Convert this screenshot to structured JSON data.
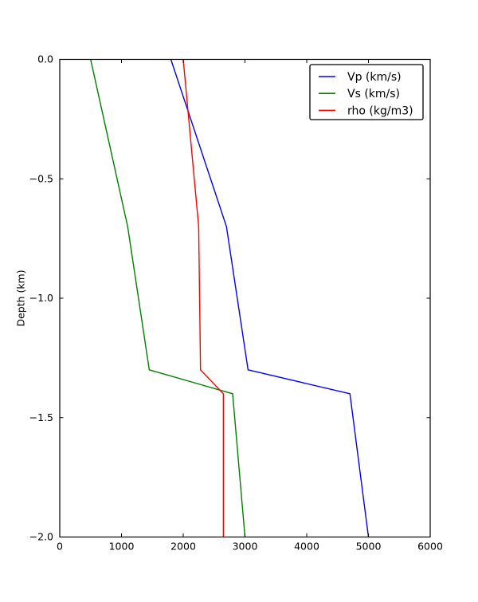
{
  "chart_data": {
    "type": "line",
    "title": "",
    "xlabel": "",
    "ylabel": "Depth (km)",
    "xlim": [
      0,
      6000
    ],
    "ylim": [
      -2.0,
      0.0
    ],
    "grid": false,
    "background_color": "#ffffff",
    "axis_color": "#000000",
    "xtick_values": [
      0,
      1000,
      2000,
      3000,
      4000,
      5000,
      6000
    ],
    "xtick_labels": [
      "0",
      "1000",
      "2000",
      "3000",
      "4000",
      "5000",
      "6000"
    ],
    "ytick_values": [
      0.0,
      -0.5,
      -1.0,
      -1.5,
      -2.0
    ],
    "ytick_labels": [
      "0.0",
      "−0.5",
      "−1.0",
      "−1.5",
      "−2.0"
    ],
    "legend": {
      "position": "upper right",
      "border_color": "#000000",
      "background_color": "#ffffff",
      "entries": [
        {
          "label": "Vp (km/s)",
          "color": "#0000ff"
        },
        {
          "label": "Vs (km/s)",
          "color": "#008000"
        },
        {
          "label": "rho (kg/m3)",
          "color": "#ff0000"
        }
      ]
    },
    "series": [
      {
        "name": "Vp (km/s)",
        "color": "#0000ff",
        "points": [
          {
            "x": 1800,
            "depth": 0.0
          },
          {
            "x": 2700,
            "depth": -0.7
          },
          {
            "x": 3050,
            "depth": -1.3
          },
          {
            "x": 4700,
            "depth": -1.4
          },
          {
            "x": 5000,
            "depth": -2.0
          }
        ]
      },
      {
        "name": "Vs (km/s)",
        "color": "#008000",
        "points": [
          {
            "x": 500,
            "depth": 0.0
          },
          {
            "x": 1100,
            "depth": -0.7
          },
          {
            "x": 1450,
            "depth": -1.3
          },
          {
            "x": 2800,
            "depth": -1.4
          },
          {
            "x": 3000,
            "depth": -2.0
          }
        ]
      },
      {
        "name": "rho (kg/m3)",
        "color": "#ff0000",
        "points": [
          {
            "x": 2000,
            "depth": 0.0
          },
          {
            "x": 2250,
            "depth": -0.7
          },
          {
            "x": 2280,
            "depth": -1.3
          },
          {
            "x": 2650,
            "depth": -1.4
          },
          {
            "x": 2650,
            "depth": -2.0
          }
        ]
      }
    ]
  }
}
